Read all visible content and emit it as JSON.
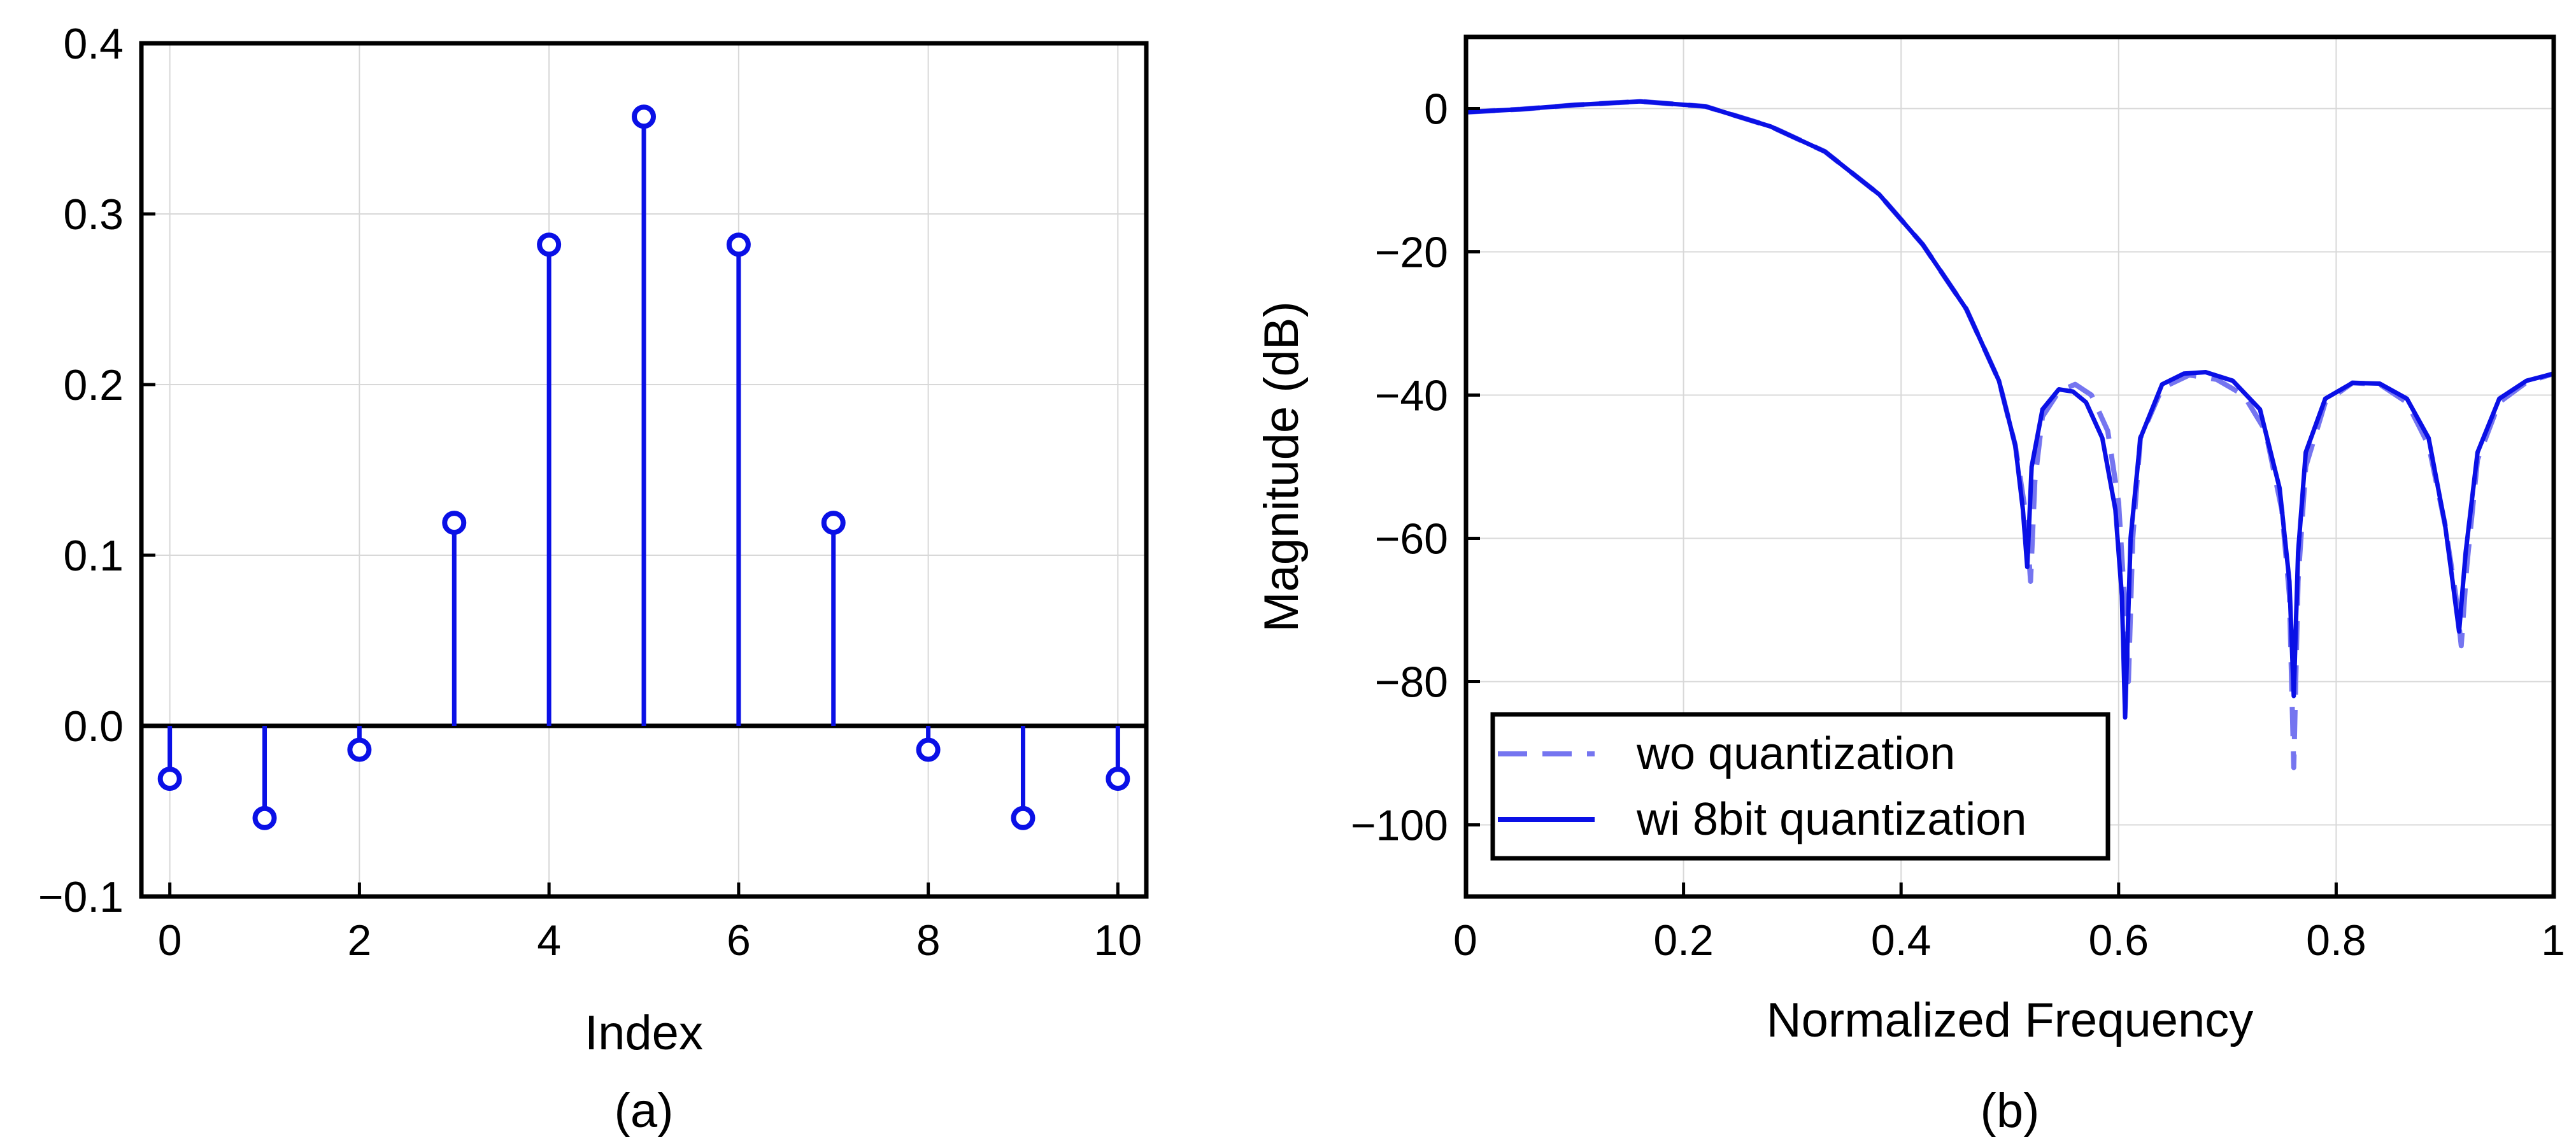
{
  "panels": {
    "a": {
      "label": "(a)"
    },
    "b": {
      "label": "(b)"
    }
  },
  "colors": {
    "series": "#0a10e6",
    "dashed_series": "#7575f0",
    "grid": "#d8d8d8"
  },
  "chart_data": [
    {
      "type": "stem",
      "title": "",
      "xlabel": "Index",
      "ylabel": "",
      "xlim": [
        -0.3,
        10.3
      ],
      "ylim": [
        -0.1,
        0.4
      ],
      "xticks": [
        0,
        2,
        4,
        6,
        8,
        10
      ],
      "xtick_labels": [
        "0",
        "2",
        "4",
        "6",
        "8",
        "10"
      ],
      "yticks": [
        -0.1,
        0.0,
        0.1,
        0.2,
        0.3,
        0.4
      ],
      "ytick_labels": [
        "−0.1",
        "0.0",
        "0.1",
        "0.2",
        "0.3",
        "0.4"
      ],
      "grid": true,
      "x": [
        0,
        1,
        2,
        3,
        4,
        5,
        6,
        7,
        8,
        9,
        10
      ],
      "y": [
        -0.031,
        -0.054,
        -0.014,
        0.119,
        0.282,
        0.357,
        0.282,
        0.119,
        -0.014,
        -0.054,
        -0.031
      ],
      "marker": "open-circle",
      "color": "#0a10e6"
    },
    {
      "type": "line",
      "title": "",
      "xlabel": "Normalized Frequency",
      "ylabel": "Magnitude (dB)",
      "xlim": [
        0,
        1
      ],
      "ylim": [
        -110,
        10
      ],
      "xticks": [
        0,
        0.2,
        0.4,
        0.6,
        0.8,
        1
      ],
      "xtick_labels": [
        "0",
        "0.2",
        "0.4",
        "0.6",
        "0.8",
        "1"
      ],
      "yticks": [
        0,
        -20,
        -40,
        -60,
        -80,
        -100
      ],
      "ytick_labels": [
        "0",
        "−20",
        "−40",
        "−60",
        "−80",
        "−100"
      ],
      "grid": true,
      "legend_position": "bottom-left",
      "series": [
        {
          "name": "wo quantization",
          "style": "dashed",
          "color": "#7575f0",
          "x": [
            0,
            0.05,
            0.1,
            0.16,
            0.22,
            0.28,
            0.33,
            0.38,
            0.42,
            0.46,
            0.49,
            0.505,
            0.515,
            0.519,
            0.523,
            0.53,
            0.545,
            0.56,
            0.575,
            0.59,
            0.6,
            0.606,
            0.609,
            0.613,
            0.62,
            0.64,
            0.665,
            0.69,
            0.715,
            0.735,
            0.75,
            0.757,
            0.761,
            0.765,
            0.772,
            0.79,
            0.815,
            0.84,
            0.865,
            0.885,
            0.9,
            0.91,
            0.915,
            0.92,
            0.93,
            0.95,
            0.975,
            1.0
          ],
          "y": [
            -0.5,
            -0.1,
            0.5,
            1.0,
            0.3,
            -2.5,
            -6,
            -12,
            -19,
            -28,
            -38,
            -47,
            -57,
            -66,
            -52,
            -43,
            -39.5,
            -38.5,
            -40,
            -45,
            -55,
            -70,
            -80,
            -60,
            -46,
            -39,
            -37.2,
            -37.8,
            -40,
            -45,
            -56,
            -68,
            -92,
            -66,
            -50,
            -41,
            -38.3,
            -38.5,
            -41,
            -47,
            -58,
            -68,
            -75,
            -64,
            -49,
            -41,
            -38.2,
            -37
          ]
        },
        {
          "name": "wi 8bit quantization",
          "style": "solid",
          "color": "#0a10e6",
          "x": [
            0,
            0.05,
            0.1,
            0.16,
            0.22,
            0.28,
            0.33,
            0.38,
            0.42,
            0.46,
            0.49,
            0.505,
            0.512,
            0.516,
            0.52,
            0.53,
            0.545,
            0.558,
            0.57,
            0.585,
            0.597,
            0.603,
            0.606,
            0.611,
            0.62,
            0.64,
            0.66,
            0.68,
            0.705,
            0.73,
            0.748,
            0.757,
            0.761,
            0.765,
            0.772,
            0.79,
            0.815,
            0.84,
            0.865,
            0.885,
            0.9,
            0.907,
            0.913,
            0.919,
            0.93,
            0.95,
            0.975,
            1.0
          ],
          "y": [
            -0.5,
            -0.1,
            0.5,
            1.0,
            0.3,
            -2.5,
            -6,
            -12,
            -19,
            -28,
            -38,
            -47,
            -56,
            -64,
            -50,
            -42,
            -39.2,
            -39.5,
            -41,
            -46,
            -56,
            -68,
            -85,
            -60,
            -46,
            -38.5,
            -37,
            -36.8,
            -38,
            -42,
            -53,
            -66,
            -82,
            -62,
            -48,
            -40.5,
            -38.3,
            -38.4,
            -40.5,
            -46,
            -58,
            -66,
            -73,
            -62,
            -48,
            -40.5,
            -38,
            -37
          ]
        }
      ]
    }
  ]
}
